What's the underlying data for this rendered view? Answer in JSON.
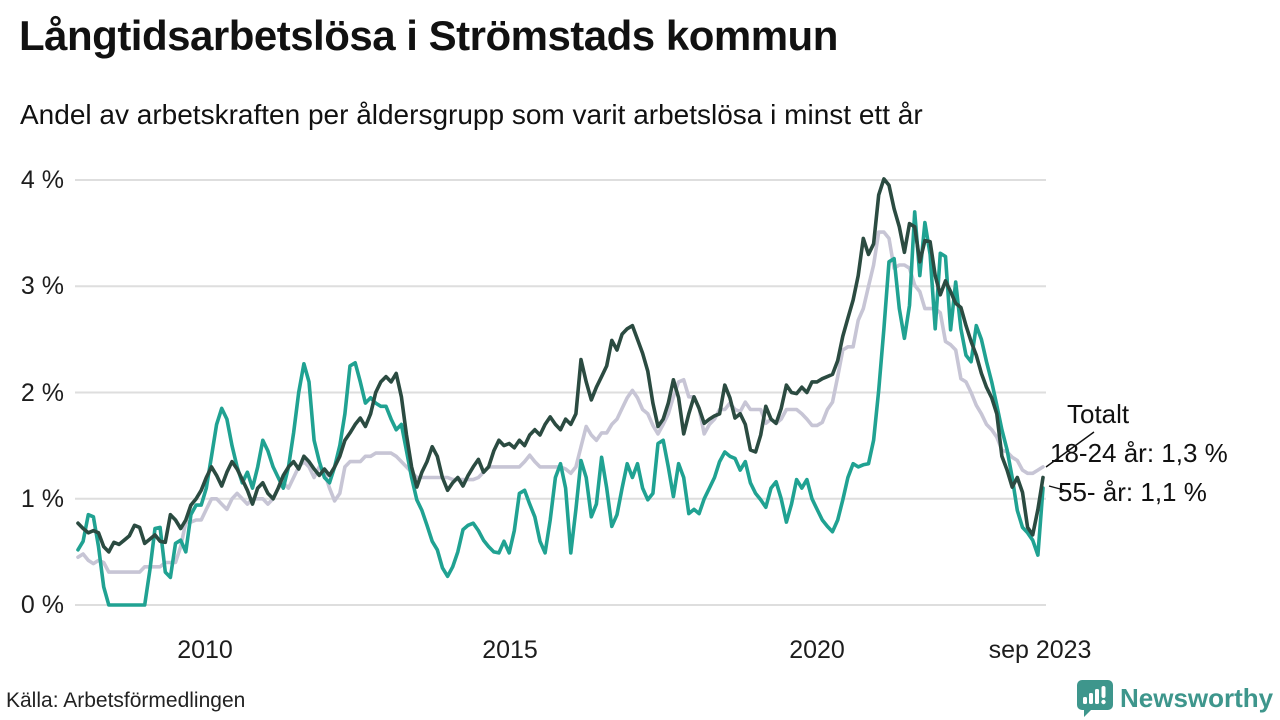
{
  "header": {
    "title": "Långtidsarbetslösa i Strömstads kommun",
    "subtitle": "Andel av arbetskraften per åldersgrupp som varit arbetslösa i minst ett år"
  },
  "chart_data": {
    "type": "line",
    "title": "Långtidsarbetslösa i Strömstads kommun",
    "x_start": "2008-01",
    "x_end": "2023-09",
    "frequency": "monthly",
    "ylim": [
      0,
      4
    ],
    "grid": "horizontal",
    "yticks": [
      "0 %",
      "1 %",
      "2 %",
      "3 %",
      "4 %"
    ],
    "xticks": [
      {
        "label": "2010",
        "month_index": 24
      },
      {
        "label": "2015",
        "month_index": 84
      },
      {
        "label": "2020",
        "month_index": 144
      },
      {
        "label": "sep 2023",
        "month_index": 188
      }
    ],
    "annotations": [
      {
        "text": "Totalt"
      },
      {
        "text": "18-24 år: 1,3 %"
      },
      {
        "text": "55- år: 1,1 %"
      }
    ],
    "series": [
      {
        "name": "Totalt",
        "color": "#2b4b41",
        "values": [
          0.77,
          0.72,
          0.68,
          0.7,
          0.68,
          0.55,
          0.5,
          0.59,
          0.57,
          0.61,
          0.65,
          0.75,
          0.73,
          0.58,
          0.62,
          0.66,
          0.6,
          0.59,
          0.85,
          0.8,
          0.72,
          0.8,
          0.94,
          1.0,
          1.08,
          1.2,
          1.3,
          1.22,
          1.12,
          1.25,
          1.35,
          1.28,
          1.18,
          1.08,
          0.95,
          1.1,
          1.15,
          1.05,
          1.0,
          1.1,
          1.22,
          1.3,
          1.35,
          1.28,
          1.4,
          1.35,
          1.28,
          1.22,
          1.28,
          1.22,
          1.3,
          1.4,
          1.55,
          1.62,
          1.7,
          1.76,
          1.68,
          1.8,
          2.0,
          2.1,
          2.15,
          2.1,
          2.18,
          1.96,
          1.6,
          1.3,
          1.11,
          1.25,
          1.35,
          1.49,
          1.4,
          1.2,
          1.08,
          1.15,
          1.2,
          1.12,
          1.22,
          1.3,
          1.37,
          1.25,
          1.3,
          1.45,
          1.55,
          1.5,
          1.52,
          1.48,
          1.55,
          1.5,
          1.6,
          1.65,
          1.6,
          1.7,
          1.77,
          1.7,
          1.65,
          1.75,
          1.7,
          1.8,
          2.31,
          2.1,
          1.93,
          2.05,
          2.15,
          2.25,
          2.49,
          2.4,
          2.55,
          2.6,
          2.63,
          2.5,
          2.37,
          2.2,
          1.9,
          1.68,
          1.75,
          1.9,
          2.12,
          1.95,
          1.61,
          1.8,
          1.96,
          1.85,
          1.71,
          1.75,
          1.78,
          1.8,
          2.07,
          1.95,
          1.76,
          1.8,
          1.7,
          1.46,
          1.44,
          1.6,
          1.87,
          1.75,
          1.71,
          1.85,
          2.07,
          2.0,
          1.99,
          2.05,
          2.0,
          2.1,
          2.1,
          2.13,
          2.15,
          2.17,
          2.3,
          2.53,
          2.7,
          2.87,
          3.1,
          3.45,
          3.3,
          3.4,
          3.86,
          4.01,
          3.95,
          3.73,
          3.56,
          3.32,
          3.59,
          3.56,
          3.23,
          3.43,
          3.42,
          3.1,
          2.92,
          3.05,
          2.95,
          2.84,
          2.8,
          2.63,
          2.48,
          2.35,
          2.18,
          2.05,
          1.95,
          1.8,
          1.4,
          1.27,
          1.11,
          1.2,
          1.06,
          0.73,
          0.66,
          0.9,
          1.2
        ]
      },
      {
        "name": "18-24 år",
        "color": "#c7c5d5",
        "values": [
          0.45,
          0.48,
          0.42,
          0.39,
          0.42,
          0.4,
          0.31,
          0.31,
          0.31,
          0.31,
          0.31,
          0.31,
          0.31,
          0.36,
          0.36,
          0.36,
          0.36,
          0.4,
          0.4,
          0.4,
          0.55,
          0.78,
          0.78,
          0.8,
          0.8,
          0.9,
          1.0,
          1.0,
          0.95,
          0.9,
          1.0,
          1.05,
          1.0,
          0.95,
          1.0,
          1.0,
          1.0,
          0.95,
          1.0,
          1.1,
          1.15,
          1.1,
          1.2,
          1.3,
          1.35,
          1.3,
          1.2,
          1.3,
          1.25,
          1.1,
          0.98,
          1.05,
          1.3,
          1.35,
          1.35,
          1.35,
          1.4,
          1.4,
          1.43,
          1.43,
          1.43,
          1.43,
          1.4,
          1.35,
          1.3,
          1.25,
          1.2,
          1.2,
          1.2,
          1.2,
          1.2,
          1.2,
          1.2,
          1.18,
          1.18,
          1.18,
          1.18,
          1.18,
          1.2,
          1.25,
          1.3,
          1.3,
          1.3,
          1.3,
          1.3,
          1.3,
          1.3,
          1.35,
          1.41,
          1.35,
          1.3,
          1.3,
          1.3,
          1.3,
          1.3,
          1.28,
          1.24,
          1.3,
          1.49,
          1.68,
          1.6,
          1.55,
          1.62,
          1.62,
          1.7,
          1.75,
          1.85,
          1.95,
          2.02,
          1.95,
          1.84,
          1.8,
          1.69,
          1.61,
          1.7,
          1.8,
          1.96,
          2.1,
          2.12,
          1.96,
          1.96,
          1.85,
          1.61,
          1.7,
          1.75,
          1.84,
          1.84,
          1.9,
          1.84,
          1.82,
          1.91,
          1.84,
          1.84,
          1.84,
          1.71,
          1.75,
          1.71,
          1.75,
          1.84,
          1.84,
          1.84,
          1.8,
          1.75,
          1.69,
          1.69,
          1.72,
          1.84,
          1.91,
          2.15,
          2.4,
          2.43,
          2.43,
          2.68,
          2.79,
          3.0,
          3.2,
          3.51,
          3.51,
          3.45,
          3.17,
          3.2,
          3.2,
          3.17,
          3.01,
          2.95,
          2.79,
          2.79,
          2.79,
          2.75,
          2.48,
          2.45,
          2.4,
          2.13,
          2.1,
          2.0,
          1.88,
          1.8,
          1.7,
          1.65,
          1.58,
          1.46,
          1.44,
          1.39,
          1.36,
          1.27,
          1.24,
          1.24,
          1.27,
          1.3
        ]
      },
      {
        "name": "55- år",
        "color": "#20a292",
        "values": [
          0.52,
          0.6,
          0.85,
          0.83,
          0.55,
          0.17,
          0.0,
          0.0,
          0.0,
          0.0,
          0.0,
          0.0,
          0.0,
          0.0,
          0.33,
          0.72,
          0.73,
          0.31,
          0.26,
          0.58,
          0.61,
          0.5,
          0.85,
          0.94,
          0.94,
          1.1,
          1.4,
          1.7,
          1.85,
          1.75,
          1.5,
          1.3,
          1.15,
          1.25,
          1.1,
          1.3,
          1.55,
          1.45,
          1.3,
          1.2,
          1.1,
          1.3,
          1.62,
          2.0,
          2.27,
          2.1,
          1.55,
          1.35,
          1.2,
          1.15,
          1.3,
          1.5,
          1.8,
          2.25,
          2.28,
          2.1,
          1.9,
          1.95,
          1.9,
          1.87,
          1.87,
          1.75,
          1.65,
          1.7,
          1.45,
          1.2,
          0.99,
          0.89,
          0.75,
          0.6,
          0.52,
          0.35,
          0.27,
          0.36,
          0.5,
          0.71,
          0.75,
          0.77,
          0.7,
          0.61,
          0.55,
          0.5,
          0.49,
          0.6,
          0.49,
          0.7,
          1.05,
          1.08,
          0.95,
          0.83,
          0.6,
          0.49,
          0.8,
          1.2,
          1.33,
          1.1,
          0.49,
          0.9,
          1.36,
          1.2,
          0.83,
          0.95,
          1.39,
          1.1,
          0.74,
          0.85,
          1.1,
          1.33,
          1.2,
          1.33,
          1.1,
          0.99,
          1.05,
          1.52,
          1.55,
          1.3,
          1.02,
          1.33,
          1.2,
          0.86,
          0.9,
          0.86,
          1.0,
          1.1,
          1.2,
          1.35,
          1.44,
          1.4,
          1.38,
          1.27,
          1.35,
          1.15,
          1.05,
          0.99,
          0.92,
          1.1,
          1.16,
          1.0,
          0.78,
          0.95,
          1.18,
          1.1,
          1.18,
          1.0,
          0.9,
          0.8,
          0.74,
          0.69,
          0.8,
          0.99,
          1.2,
          1.33,
          1.3,
          1.32,
          1.33,
          1.55,
          2.02,
          2.6,
          3.23,
          3.26,
          2.79,
          2.51,
          2.82,
          3.7,
          3.1,
          3.6,
          3.3,
          2.6,
          3.31,
          3.28,
          2.59,
          3.04,
          2.6,
          2.35,
          2.29,
          2.63,
          2.5,
          2.29,
          2.1,
          1.88,
          1.65,
          1.46,
          1.2,
          0.89,
          0.73,
          0.68,
          0.61,
          0.47,
          1.1
        ]
      }
    ],
    "colors": {
      "grid": "#dedede",
      "text": "#1a1a1a",
      "brand_teal": "#3e968c"
    }
  },
  "footer": {
    "source": "Källa: Arbetsförmedlingen",
    "brand": "Newsworthy"
  }
}
